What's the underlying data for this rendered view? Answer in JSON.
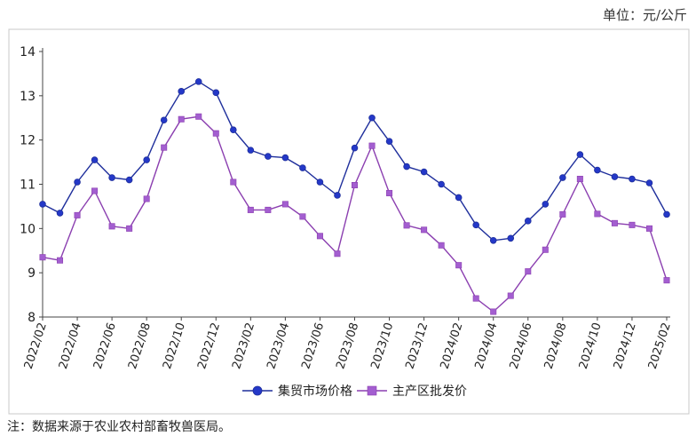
{
  "unit_label": "单位：元/公斤",
  "footnote": "注：数据来源于农业农村部畜牧兽医局。",
  "chart_data": {
    "type": "line",
    "ylim": [
      8,
      14
    ],
    "yticks": [
      8,
      9,
      10,
      11,
      12,
      13,
      14
    ],
    "xtick_labels": [
      "2022/02",
      "2022/04",
      "2022/06",
      "2022/08",
      "2022/10",
      "2022/12",
      "2023/02",
      "2023/04",
      "2023/06",
      "2023/08",
      "2023/10",
      "2023/12",
      "2024/02",
      "2024/04",
      "2024/06",
      "2024/08",
      "2024/10",
      "2024/12",
      "2025/02"
    ],
    "x": [
      "2022/02",
      "2022/03",
      "2022/04",
      "2022/05",
      "2022/06",
      "2022/07",
      "2022/08",
      "2022/09",
      "2022/10",
      "2022/11",
      "2022/12",
      "2023/01",
      "2023/02",
      "2023/03",
      "2023/04",
      "2023/05",
      "2023/06",
      "2023/07",
      "2023/08",
      "2023/09",
      "2023/10",
      "2023/11",
      "2023/12",
      "2024/01",
      "2024/02",
      "2024/03",
      "2024/04",
      "2024/05",
      "2024/06",
      "2024/07",
      "2024/08",
      "2024/09",
      "2024/10",
      "2024/11",
      "2024/12",
      "2025/01",
      "2025/02"
    ],
    "legend_position": "bottom",
    "grid": false,
    "series": [
      {
        "name": "集贸市场价格",
        "color": "#1f2f9c",
        "marker": "circle",
        "values": [
          10.55,
          10.35,
          11.05,
          11.55,
          11.15,
          11.1,
          11.55,
          12.45,
          13.1,
          13.32,
          13.07,
          12.23,
          11.77,
          11.63,
          11.6,
          11.37,
          11.05,
          10.75,
          11.82,
          12.5,
          11.97,
          11.4,
          11.28,
          11.0,
          10.7,
          10.08,
          9.73,
          9.78,
          10.17,
          10.55,
          11.15,
          11.67,
          11.32,
          11.17,
          11.12,
          11.03,
          10.32
        ]
      },
      {
        "name": "主产区批发价",
        "color": "#8b3fb0",
        "marker": "square",
        "values": [
          9.35,
          9.28,
          10.3,
          10.85,
          10.05,
          10.0,
          10.67,
          11.83,
          12.47,
          12.53,
          12.15,
          11.05,
          10.42,
          10.42,
          10.55,
          10.27,
          9.83,
          9.43,
          10.98,
          11.87,
          10.8,
          10.07,
          9.97,
          9.62,
          9.17,
          8.42,
          8.12,
          8.48,
          9.03,
          9.52,
          10.32,
          11.12,
          10.33,
          10.12,
          10.08,
          10.0,
          8.83
        ]
      }
    ]
  }
}
